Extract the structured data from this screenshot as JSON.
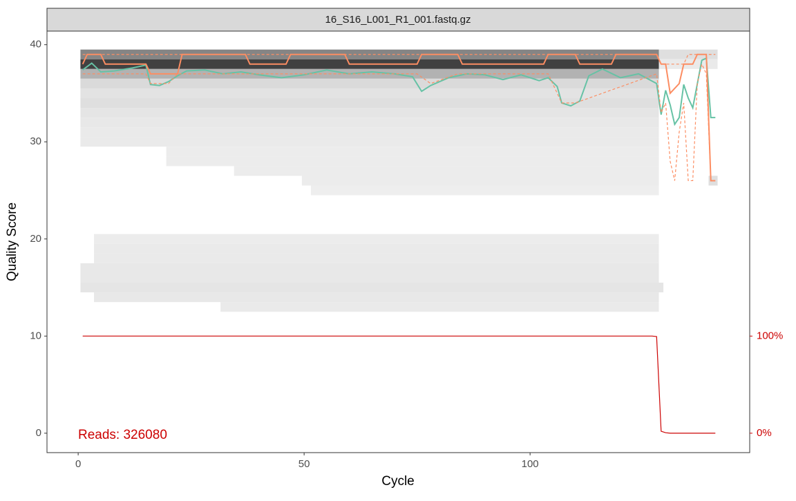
{
  "chart_data": {
    "type": "quality-profile",
    "title": "16_S16_L001_R1_001.fastq.gz",
    "x_label": "Cycle",
    "y_label": "Quality Score",
    "annotation": "Reads:  326080",
    "xlim": [
      -6.9,
      148.6
    ],
    "xticks": [
      0,
      50,
      100
    ],
    "ylim": [
      -2,
      41.4
    ],
    "yticks": [
      0,
      10,
      20,
      30,
      40
    ],
    "y2lim": [
      -20,
      414
    ],
    "y2ticks": [
      {
        "value": 0,
        "label": "0%"
      },
      {
        "value": 100,
        "label": "100%"
      }
    ],
    "tiles": [
      {
        "q": 39,
        "cycles": [
          1,
          128
        ],
        "density": 0.5
      },
      {
        "q": 38,
        "cycles": [
          1,
          128
        ],
        "density": 0.8
      },
      {
        "q": 37,
        "cycles": [
          1,
          128
        ],
        "density": 0.3
      },
      {
        "q": 36,
        "cycles": [
          1,
          128
        ],
        "density": 0.12
      },
      {
        "q": 35,
        "cycles": [
          1,
          128
        ],
        "density": 0.08
      },
      {
        "q": 34,
        "cycles": [
          1,
          128
        ],
        "density": 0.1
      },
      {
        "q": 33,
        "cycles": [
          1,
          128
        ],
        "density": 0.07
      },
      {
        "q": 32,
        "cycles": [
          1,
          128
        ],
        "density": 0.06
      },
      {
        "q": 31,
        "cycles": [
          1,
          128
        ],
        "density": 0.05
      },
      {
        "q": 30,
        "cycles": [
          1,
          128
        ],
        "density": 0.05
      },
      {
        "q": 29,
        "cycles": [
          20,
          128
        ],
        "density": 0.04
      },
      {
        "q": 28,
        "cycles": [
          20,
          128
        ],
        "density": 0.04
      },
      {
        "q": 27,
        "cycles": [
          35,
          128
        ],
        "density": 0.04
      },
      {
        "q": 26,
        "cycles": [
          50,
          128
        ],
        "density": 0.04
      },
      {
        "q": 25,
        "cycles": [
          52,
          128
        ],
        "density": 0.03
      },
      {
        "q": 20,
        "cycles": [
          4,
          128
        ],
        "density": 0.04
      },
      {
        "q": 19,
        "cycles": [
          4,
          128
        ],
        "density": 0.05
      },
      {
        "q": 18,
        "cycles": [
          4,
          128
        ],
        "density": 0.05
      },
      {
        "q": 17,
        "cycles": [
          1,
          128
        ],
        "density": 0.06
      },
      {
        "q": 16,
        "cycles": [
          1,
          128
        ],
        "density": 0.06
      },
      {
        "q": 15,
        "cycles": [
          1,
          129
        ],
        "density": 0.07
      },
      {
        "q": 14,
        "cycles": [
          4,
          128
        ],
        "density": 0.06
      },
      {
        "q": 13,
        "cycles": [
          32,
          128
        ],
        "density": 0.05
      },
      {
        "q": 39,
        "cycles": [
          129,
          141
        ],
        "density": 0.1
      },
      {
        "q": 38,
        "cycles": [
          129,
          141
        ],
        "density": 0.05
      },
      {
        "q": 26,
        "cycles": [
          140,
          141
        ],
        "density": 0.1
      }
    ],
    "series": [
      {
        "name": "mean",
        "color": "#66c2a5",
        "dash": false,
        "x": [
          1,
          3,
          5,
          8,
          12,
          15,
          16,
          18,
          20,
          22,
          24,
          28,
          32,
          36,
          40,
          45,
          50,
          55,
          60,
          65,
          70,
          74,
          76,
          78,
          82,
          86,
          90,
          94,
          98,
          102,
          104,
          106,
          107,
          109,
          111,
          113,
          116,
          120,
          124,
          128,
          129,
          130,
          131,
          132,
          133,
          134,
          135,
          136,
          138,
          139,
          140,
          141
        ],
        "values": [
          37.4,
          38.1,
          37.2,
          37.3,
          37.6,
          37.9,
          35.9,
          35.8,
          36.2,
          36.8,
          37.3,
          37.4,
          37.0,
          37.2,
          36.9,
          36.6,
          36.9,
          37.4,
          37.0,
          37.2,
          37.0,
          36.7,
          35.2,
          35.8,
          36.6,
          37.0,
          36.9,
          36.4,
          36.9,
          36.3,
          36.6,
          35.7,
          34.0,
          33.7,
          34.2,
          36.8,
          37.5,
          36.6,
          37.0,
          36.0,
          32.8,
          35.3,
          33.8,
          31.8,
          32.5,
          35.9,
          34.5,
          33.5,
          38.4,
          38.6,
          32.5,
          32.5
        ]
      },
      {
        "name": "median",
        "color": "#fc8d62",
        "dash": false,
        "x": [
          1,
          2,
          5,
          6,
          15,
          16,
          22,
          23,
          37,
          38,
          46,
          47,
          59,
          60,
          75,
          76,
          84,
          85,
          103,
          104,
          110,
          111,
          118,
          119,
          128,
          129,
          130,
          131,
          133,
          134,
          136,
          137,
          139,
          140,
          141
        ],
        "values": [
          38,
          39,
          39,
          38,
          38,
          37,
          37,
          39,
          39,
          38,
          38,
          39,
          39,
          38,
          38,
          39,
          39,
          38,
          38,
          39,
          39,
          38,
          38,
          39,
          39,
          38,
          38,
          35,
          36,
          38,
          38,
          39,
          39,
          26,
          26
        ]
      },
      {
        "name": "q25",
        "color": "#fc8d62",
        "dash": true,
        "x": [
          1,
          5,
          15,
          16,
          20,
          22,
          40,
          55,
          75,
          78,
          84,
          104,
          107,
          110,
          128,
          129,
          130,
          131,
          132,
          133,
          134,
          135,
          136,
          137,
          138,
          139,
          140,
          141
        ],
        "values": [
          37,
          37,
          37,
          36,
          36,
          37,
          37,
          37,
          37,
          36,
          37,
          37,
          34,
          34,
          37,
          33,
          34,
          28,
          26,
          31,
          34,
          26,
          26,
          36,
          38,
          37,
          26,
          26
        ]
      },
      {
        "name": "q75",
        "color": "#fc8d62",
        "dash": true,
        "x": [
          1,
          4,
          128,
          129,
          134,
          135,
          141
        ],
        "values": [
          39,
          39,
          39,
          38,
          38,
          39,
          39
        ]
      },
      {
        "name": "reads",
        "color": "#cc0000",
        "dash": false,
        "axis": "y2",
        "x": [
          1,
          127,
          128,
          129,
          130,
          131,
          141
        ],
        "values": [
          100,
          100,
          99.5,
          2,
          0.5,
          0,
          0
        ]
      }
    ]
  }
}
